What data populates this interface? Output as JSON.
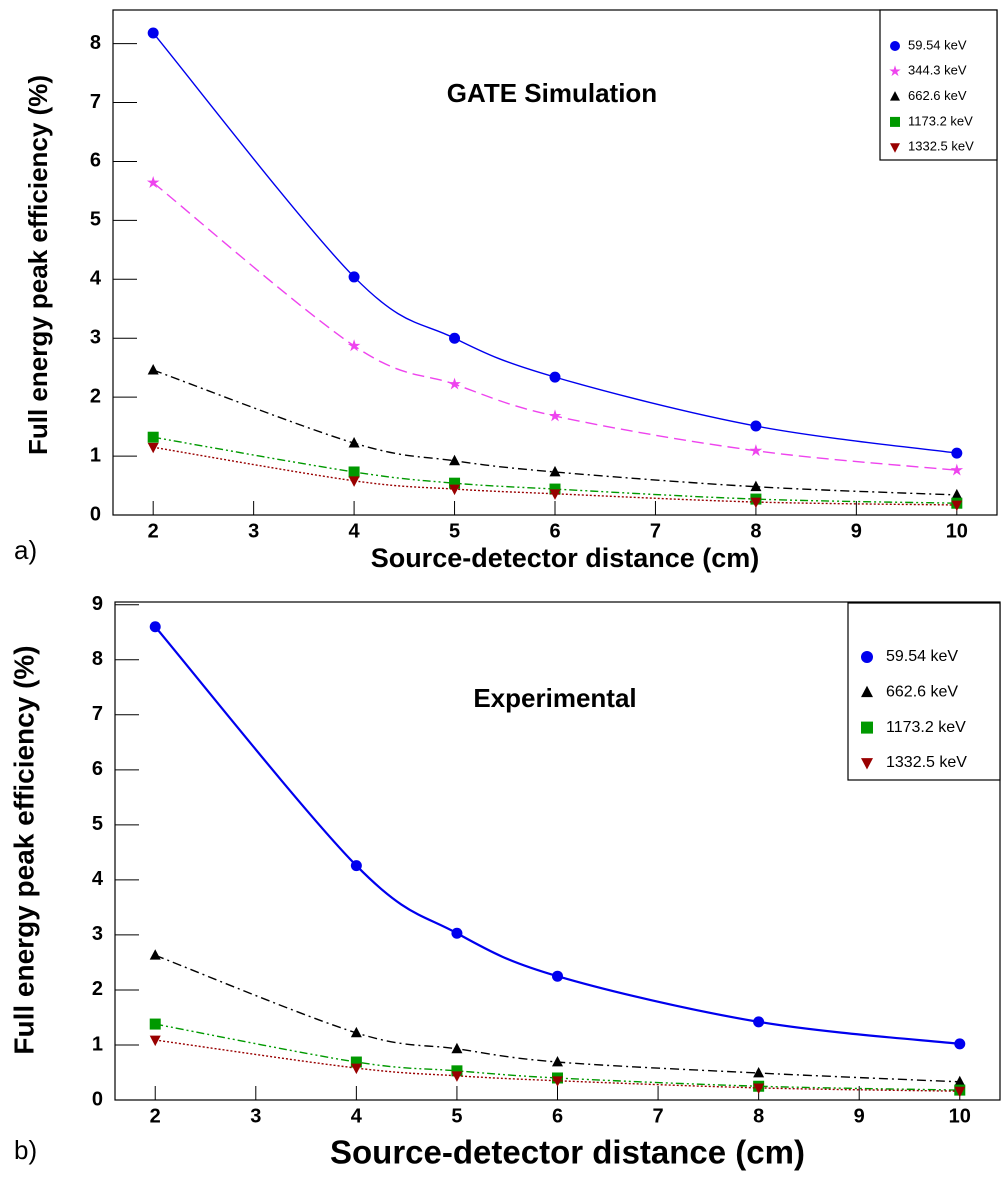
{
  "chart_data": [
    {
      "type": "line",
      "panel_label": "a)",
      "title": "GATE Simulation",
      "xlabel": "Source-detector distance (cm)",
      "ylabel": "Full energy peak efficiency (%)",
      "x": [
        2,
        4,
        5,
        6,
        8,
        10
      ],
      "xlim": [
        1.6,
        10.4
      ],
      "xticks": [
        2,
        3,
        4,
        5,
        6,
        7,
        8,
        9,
        10
      ],
      "ylim": [
        0,
        8.57
      ],
      "yticks": [
        0,
        1,
        2,
        3,
        4,
        5,
        6,
        7,
        8
      ],
      "legend": "top-right",
      "series": [
        {
          "name": "59.54 keV",
          "color": "#0000ee",
          "marker": "circle",
          "dash": "solid",
          "values": [
            8.18,
            4.04,
            3.0,
            2.34,
            1.51,
            1.05
          ]
        },
        {
          "name": "344.3 keV",
          "color": "#ee44ee",
          "marker": "star",
          "dash": "dashed",
          "values": [
            5.64,
            2.87,
            2.22,
            1.68,
            1.09,
            0.76
          ]
        },
        {
          "name": "662.6 keV",
          "color": "#000000",
          "marker": "triangle-up",
          "dash": "dash-dot",
          "values": [
            2.46,
            1.22,
            0.92,
            0.73,
            0.48,
            0.34
          ]
        },
        {
          "name": "1173.2 keV",
          "color": "#009900",
          "marker": "square",
          "dash": "dash-dot-dot",
          "values": [
            1.32,
            0.73,
            0.54,
            0.44,
            0.27,
            0.2
          ]
        },
        {
          "name": "1332.5 keV",
          "color": "#990000",
          "marker": "triangle-down",
          "dash": "dotted",
          "values": [
            1.15,
            0.58,
            0.44,
            0.36,
            0.22,
            0.17
          ]
        }
      ]
    },
    {
      "type": "line",
      "panel_label": "b)",
      "title": "Experimental",
      "xlabel": "Source-detector distance (cm)",
      "ylabel": "Full energy peak efficiency (%)",
      "x": [
        2,
        4,
        5,
        6,
        8,
        10
      ],
      "xlim": [
        1.6,
        10.4
      ],
      "xticks": [
        2,
        3,
        4,
        5,
        6,
        7,
        8,
        9,
        10
      ],
      "ylim": [
        0,
        9.05
      ],
      "yticks": [
        0,
        1,
        2,
        3,
        4,
        5,
        6,
        7,
        8,
        9
      ],
      "legend": "top-right",
      "series": [
        {
          "name": "59.54 keV",
          "color": "#0000ee",
          "marker": "circle",
          "dash": "solid",
          "values": [
            8.6,
            4.26,
            3.03,
            2.25,
            1.42,
            1.02
          ]
        },
        {
          "name": "662.6 keV",
          "color": "#000000",
          "marker": "triangle-up",
          "dash": "dash-dot",
          "values": [
            2.63,
            1.22,
            0.93,
            0.69,
            0.49,
            0.33
          ]
        },
        {
          "name": "1173.2 keV",
          "color": "#009900",
          "marker": "square",
          "dash": "dash-dot-dot",
          "values": [
            1.38,
            0.69,
            0.53,
            0.4,
            0.25,
            0.18
          ]
        },
        {
          "name": "1332.5 keV",
          "color": "#990000",
          "marker": "triangle-down",
          "dash": "dotted",
          "values": [
            1.09,
            0.58,
            0.44,
            0.35,
            0.22,
            0.16
          ]
        }
      ]
    }
  ]
}
